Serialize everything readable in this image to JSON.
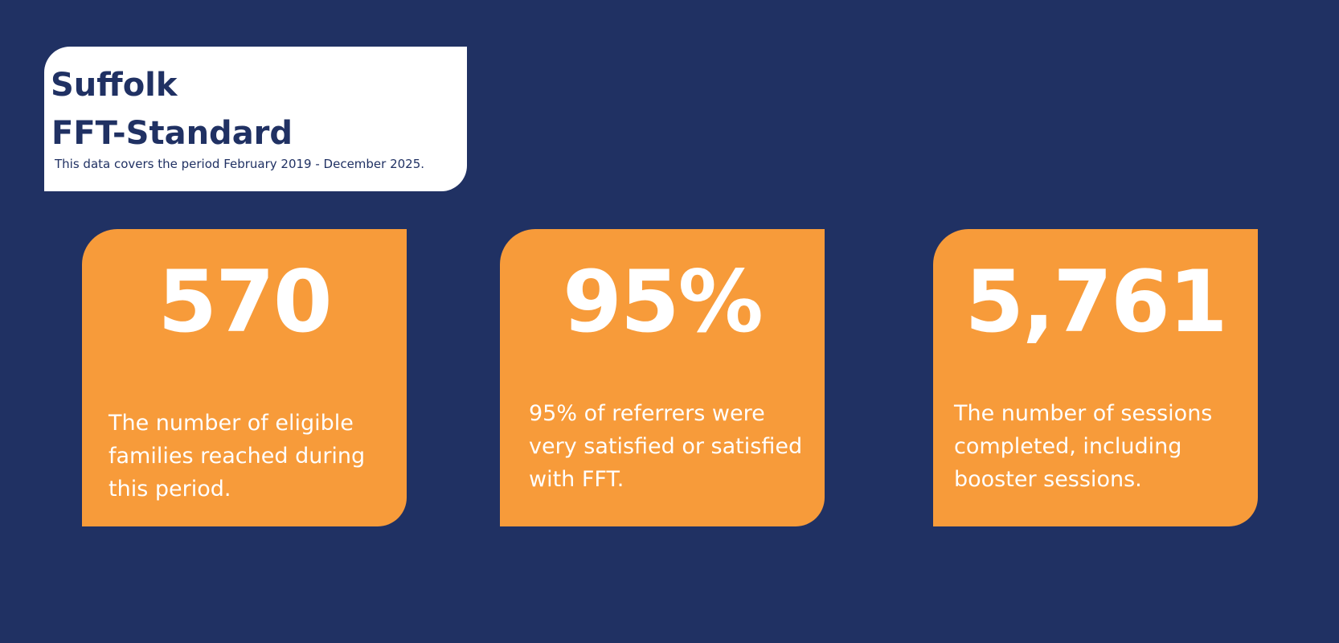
{
  "header": {
    "title_line1": "Suffolk",
    "title_line2": "FFT-Standard",
    "period_note": "This data covers the period February 2019 - December 2025."
  },
  "stats": [
    {
      "value": "570",
      "description": "The number of eligible families reached during this period."
    },
    {
      "value": "95%",
      "description": "95% of referrers were very satisfied or satisfied with FFT."
    },
    {
      "value": "5,761",
      "description": "The number of sessions completed, including booster sessions."
    }
  ],
  "colors": {
    "background": "#203163",
    "card": "#f79b3a",
    "title_card": "#ffffff",
    "text_dark": "#203163",
    "text_light": "#ffffff"
  }
}
